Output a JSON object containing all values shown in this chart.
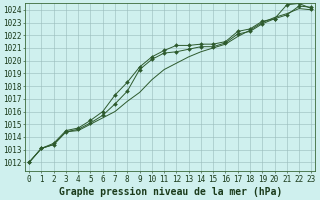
{
  "title": "Graphe pression niveau de la mer (hPa)",
  "background_color": "#cff0ee",
  "grid_color": "#99bbbb",
  "line_color": "#2d5a2d",
  "x_values": [
    0,
    1,
    2,
    3,
    4,
    5,
    6,
    7,
    8,
    9,
    10,
    11,
    12,
    13,
    14,
    15,
    16,
    17,
    18,
    19,
    20,
    21,
    22,
    23
  ],
  "series1": [
    1012.0,
    1013.1,
    1013.5,
    1014.5,
    1014.7,
    1015.3,
    1016.0,
    1017.3,
    1018.3,
    1019.5,
    1020.3,
    1020.8,
    1021.2,
    1021.2,
    1021.3,
    1021.3,
    1021.5,
    1022.3,
    1022.5,
    1023.1,
    1023.3,
    1024.4,
    1024.5,
    1024.1
  ],
  "series2": [
    1012.0,
    1013.1,
    1013.4,
    1014.4,
    1014.6,
    1015.1,
    1015.7,
    1016.6,
    1017.6,
    1019.3,
    1020.1,
    1020.6,
    1020.7,
    1020.9,
    1021.1,
    1021.1,
    1021.4,
    1022.1,
    1022.3,
    1022.9,
    1023.3,
    1023.6,
    1024.3,
    1024.2
  ],
  "series3": [
    1012.0,
    1013.1,
    1013.4,
    1014.4,
    1014.5,
    1015.0,
    1015.5,
    1016.0,
    1016.8,
    1017.5,
    1018.5,
    1019.3,
    1019.8,
    1020.3,
    1020.7,
    1021.0,
    1021.3,
    1021.9,
    1022.4,
    1023.0,
    1023.4,
    1023.7,
    1024.1,
    1024.0
  ],
  "ylim_min": 1012,
  "ylim_max": 1024,
  "xlim_min": 0,
  "xlim_max": 23,
  "title_fontsize": 7,
  "tick_fontsize": 5.5
}
